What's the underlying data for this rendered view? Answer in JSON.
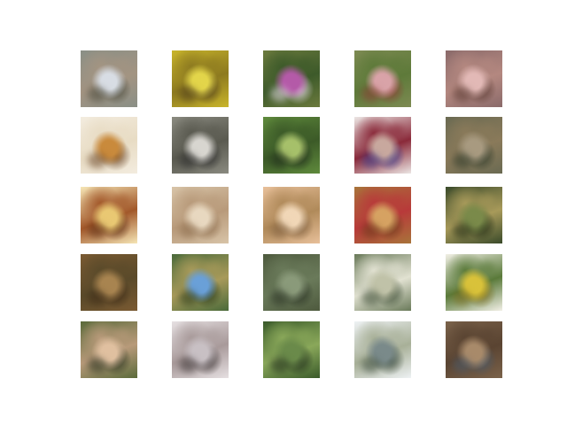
{
  "figure": {
    "grid": {
      "rows": 5,
      "cols": 5,
      "tiles": [
        {
          "bg": "#8a8f86",
          "c1": "#d8dde4",
          "c2": "#4a4a3c",
          "c3": "#a39482"
        },
        {
          "bg": "#c9b52b",
          "c1": "#e3d54a",
          "c2": "#4c3a1a",
          "c3": "#8d7a20"
        },
        {
          "bg": "#6b7a3d",
          "c1": "#b45aa8",
          "c2": "#e6dbe8",
          "c3": "#3d5a2a"
        },
        {
          "bg": "#7d8a52",
          "c1": "#d9a3a8",
          "c2": "#8a3c34",
          "c3": "#5e7a3a"
        },
        {
          "bg": "#8a6a6a",
          "c1": "#e2b9b6",
          "c2": "#5a3a32",
          "c3": "#b48880"
        },
        {
          "bg": "#f3ecdf",
          "c1": "#c98a3c",
          "c2": "#6a4424",
          "c3": "#e8dcc4"
        },
        {
          "bg": "#8a8a80",
          "c1": "#d8d6d0",
          "c2": "#2a2a2a",
          "c3": "#5a5a50"
        },
        {
          "bg": "#5f8a3c",
          "c1": "#a6c06a",
          "c2": "#1e2a1a",
          "c3": "#3c5a28"
        },
        {
          "bg": "#ece6e4",
          "c1": "#c8a89e",
          "c2": "#3a3a8a",
          "c3": "#8a2a3a"
        },
        {
          "bg": "#6a6a52",
          "c1": "#a89a80",
          "c2": "#2e3a2a",
          "c3": "#8a7a5a"
        },
        {
          "bg": "#f6e6b6",
          "c1": "#e9c873",
          "c2": "#5a2a10",
          "c3": "#a2582a"
        },
        {
          "bg": "#d8c4a8",
          "c1": "#e8d8c0",
          "c2": "#8a6a4a",
          "c3": "#b89a7a"
        },
        {
          "bg": "#e8c09a",
          "c1": "#f1d7b7",
          "c2": "#7a5a3a",
          "c3": "#b08a5a"
        },
        {
          "bg": "#a8743a",
          "c1": "#d6a262",
          "c2": "#6a3a1a",
          "c3": "#b83a3a"
        },
        {
          "bg": "#3a4a2a",
          "c1": "#7a8a4a",
          "c2": "#1e2a14",
          "c3": "#a89a5a"
        },
        {
          "bg": "#7a5a32",
          "c1": "#a88450",
          "c2": "#3c2a16",
          "c3": "#5a4a2a"
        },
        {
          "bg": "#4a6a3a",
          "c1": "#6aa0d8",
          "c2": "#2a3a1a",
          "c3": "#a89a5a"
        },
        {
          "bg": "#4e5a3e",
          "c1": "#8a9a7a",
          "c2": "#2a3224",
          "c3": "#6a7a5a"
        },
        {
          "bg": "#6a7a5a",
          "c1": "#c0c2a8",
          "c2": "#3a4a32",
          "c3": "#e2e2d2"
        },
        {
          "bg": "#f2f0e6",
          "c1": "#d9c23a",
          "c2": "#7a6a1a",
          "c3": "#5a7a3a"
        },
        {
          "bg": "#5a6a3a",
          "c1": "#e0c0a0",
          "c2": "#2a3220",
          "c3": "#b89a7a"
        },
        {
          "bg": "#e6e0e2",
          "c1": "#c8c0c4",
          "c2": "#3a3232",
          "c3": "#a89a9a"
        },
        {
          "bg": "#3a5a2a",
          "c1": "#6a8a4a",
          "c2": "#1e2a1a",
          "c3": "#8aa85a"
        },
        {
          "bg": "#eef2f4",
          "c1": "#7a8a8a",
          "c2": "#3a4a3a",
          "c3": "#a8b098"
        },
        {
          "bg": "#7a624a",
          "c1": "#a88a6a",
          "c2": "#4a5a6a",
          "c3": "#5a4432"
        }
      ]
    }
  }
}
